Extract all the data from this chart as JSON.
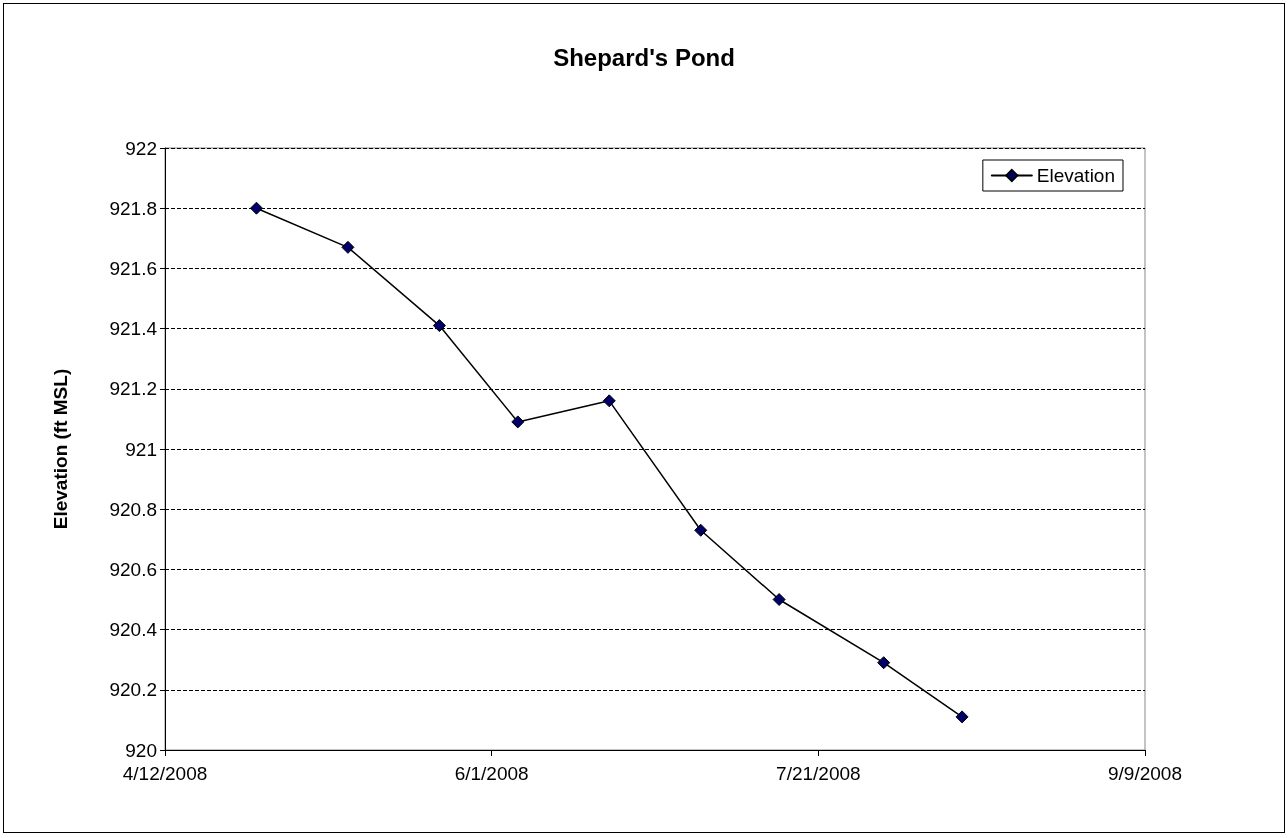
{
  "chart_data": {
    "type": "line",
    "title": "Shepard's Pond",
    "ylabel": "Elevation (ft MSL)",
    "series": [
      {
        "name": "Elevation",
        "color": "#000066",
        "x": [
          "2008-04-26",
          "2008-05-10",
          "2008-05-24",
          "2008-06-05",
          "2008-06-19",
          "2008-07-03",
          "2008-07-15",
          "2008-07-31",
          "2008-08-12"
        ],
        "values": [
          921.8,
          921.67,
          921.41,
          921.09,
          921.16,
          920.73,
          920.5,
          920.29,
          920.11
        ]
      }
    ],
    "xlim": [
      "2008-04-12",
      "2008-09-09"
    ],
    "xticks": [
      {
        "value": "2008-04-12",
        "label": "4/12/2008"
      },
      {
        "value": "2008-06-01",
        "label": "6/1/2008"
      },
      {
        "value": "2008-07-21",
        "label": "7/21/2008"
      },
      {
        "value": "2008-09-09",
        "label": "9/9/2008"
      }
    ],
    "ylim": [
      920,
      922
    ],
    "yticks": [
      920,
      920.2,
      920.4,
      920.6,
      920.8,
      921,
      921.2,
      921.4,
      921.6,
      921.8,
      922
    ],
    "grid": "y",
    "legend": "top right",
    "marker": "diamond",
    "line_style": "solid"
  }
}
